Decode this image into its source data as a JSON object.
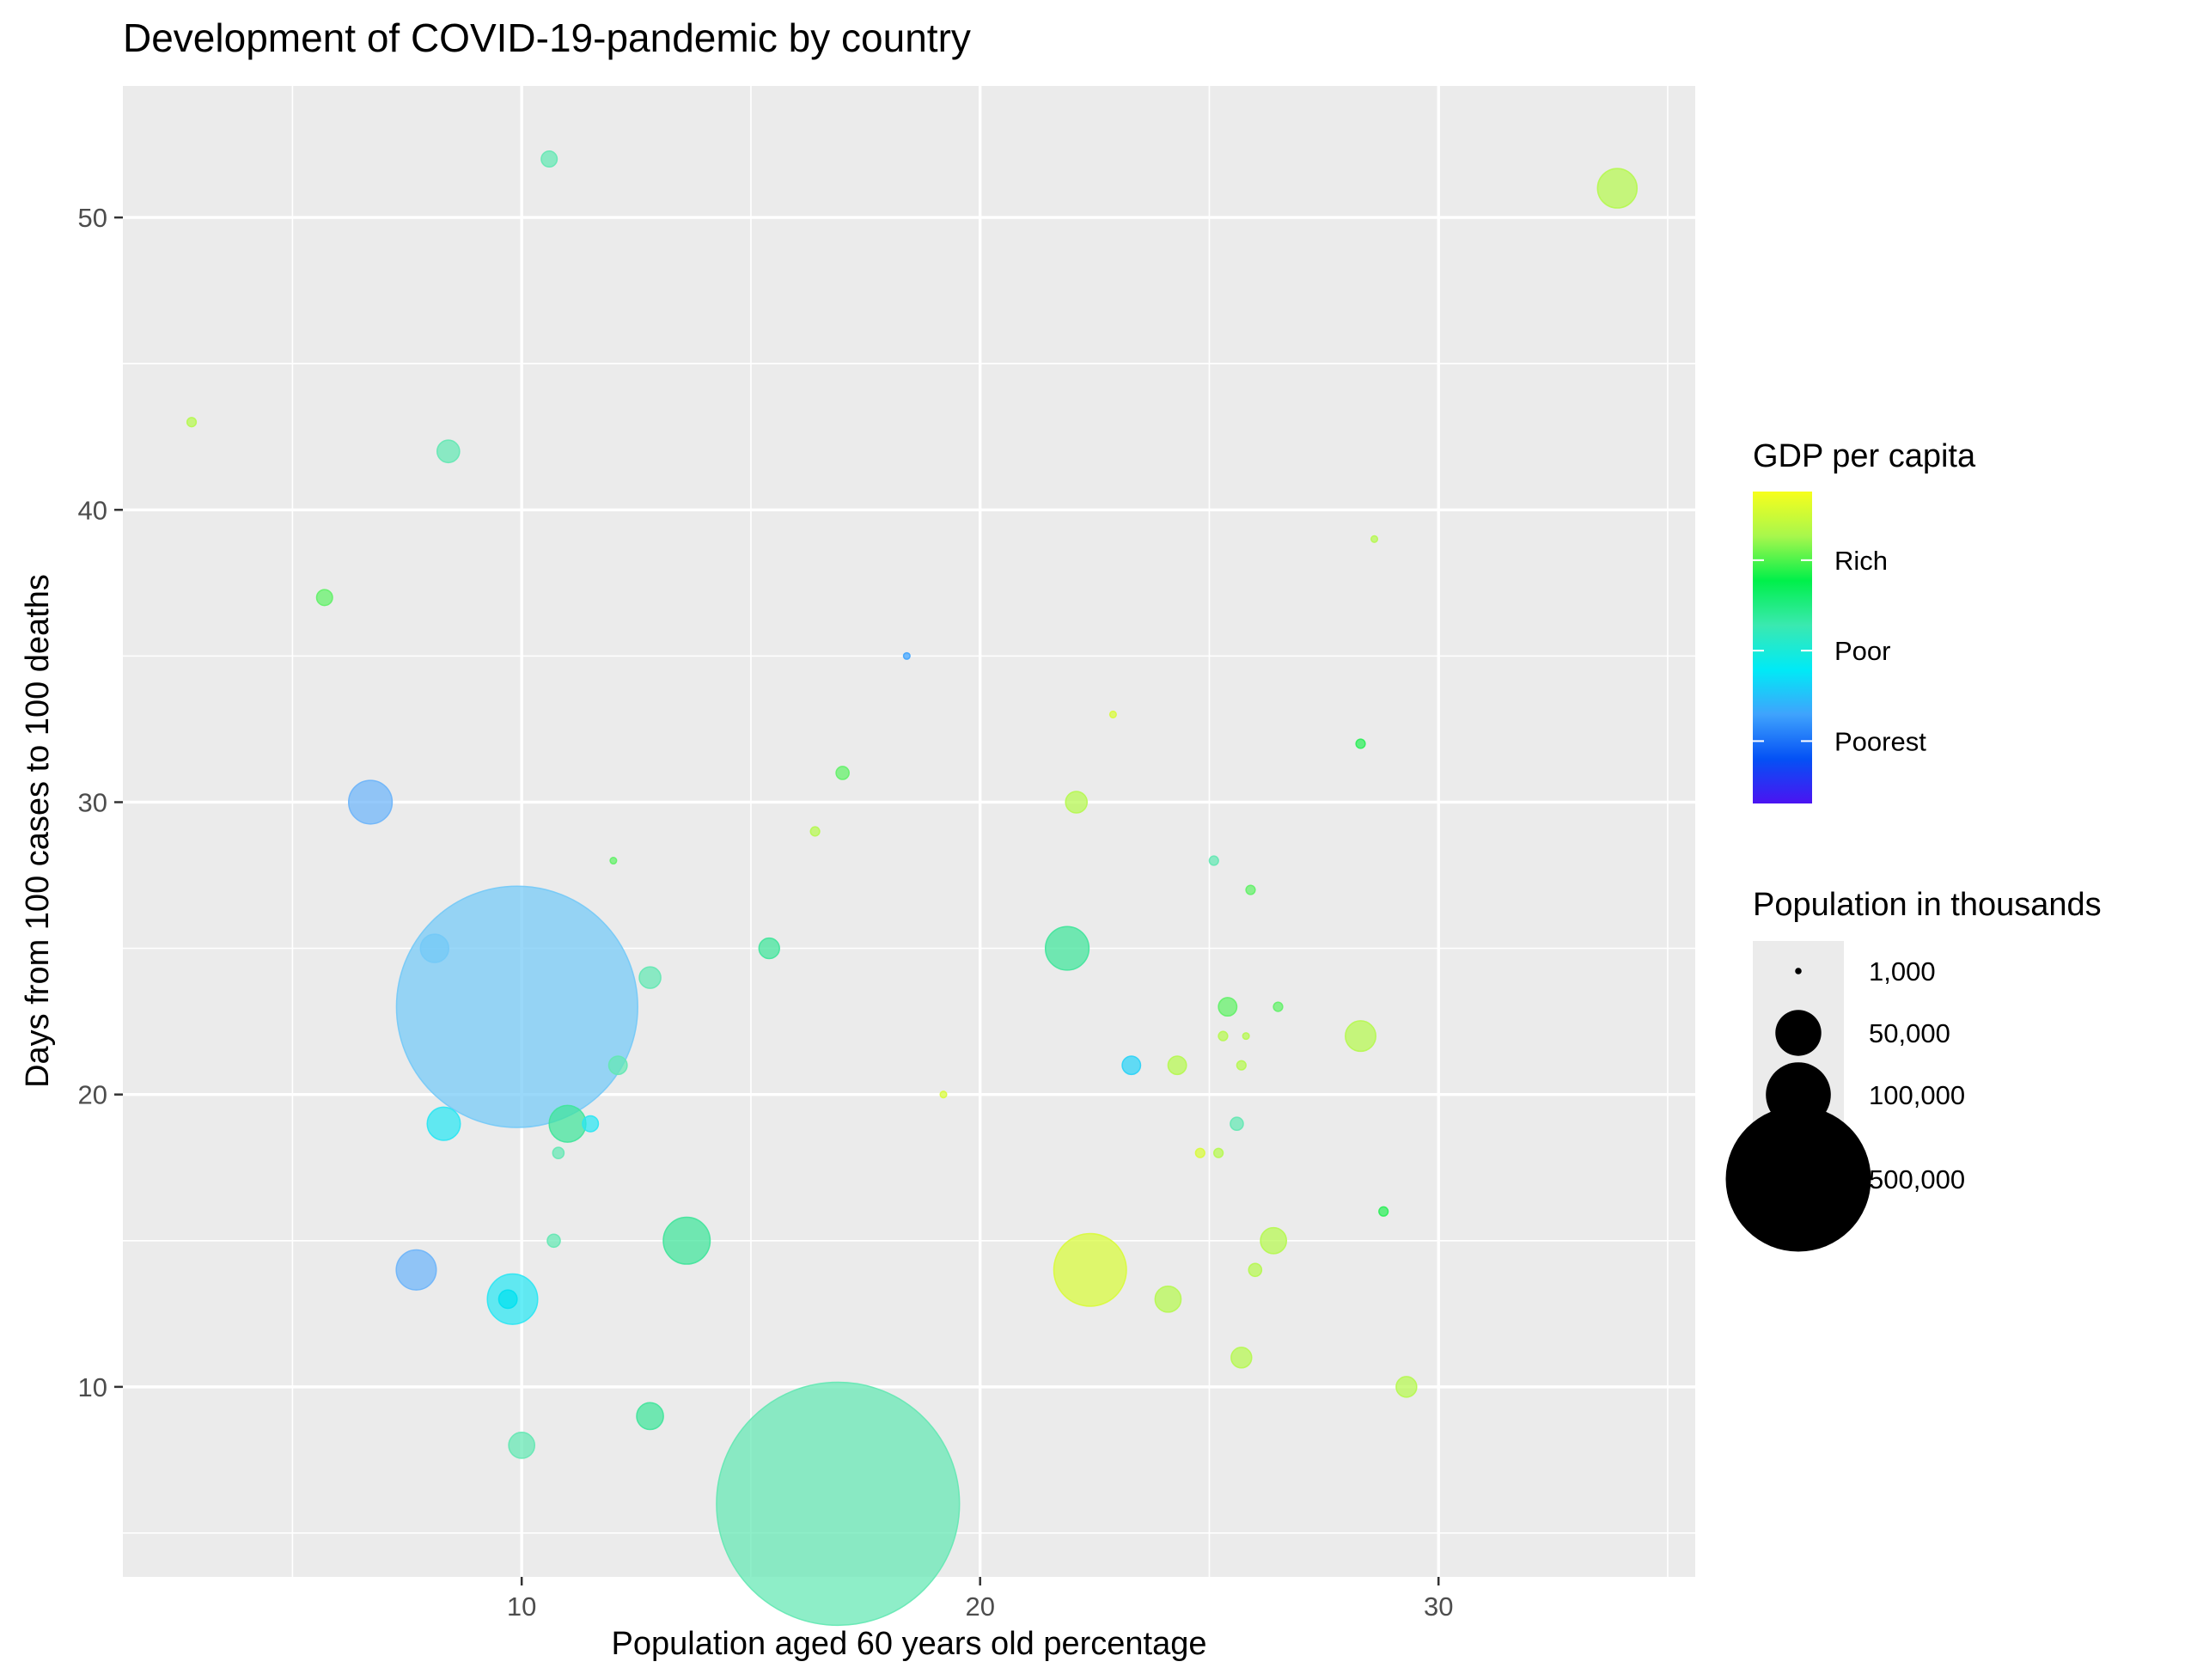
{
  "chart_data": {
    "type": "scatter",
    "title": "Development of COVID-19-pandemic by country",
    "xlabel": "Population aged 60 years old percentage",
    "ylabel": "Days from 100 cases to 100 deaths",
    "xlim": [
      1.3,
      35.6
    ],
    "ylim": [
      3.5,
      54.5
    ],
    "x_ticks": [
      10,
      20,
      30
    ],
    "y_ticks": [
      10,
      20,
      30,
      40,
      50
    ],
    "grid": true,
    "color_legend": {
      "title": "GDP per capita",
      "labels": [
        "Rich",
        "Poor",
        "Poorest"
      ],
      "label_values": [
        0.78,
        0.49,
        0.2
      ],
      "gradient": [
        "#4b13f2",
        "#0451f5",
        "#3fa3fd",
        "#00eaf6",
        "#3ae9b0",
        "#00f04a",
        "#a8f74c",
        "#f7fe1c"
      ]
    },
    "size_legend": {
      "title": "Population in thousands",
      "labels": [
        "1,000",
        "50,000",
        "100,000",
        "500,000"
      ],
      "values": [
        1000,
        50000,
        100000,
        500000
      ]
    },
    "points": [
      {
        "x": 2.8,
        "y": 43,
        "size": 2000,
        "color": "#b5f84f"
      },
      {
        "x": 5.7,
        "y": 37,
        "size": 6000,
        "color": "#61f167"
      },
      {
        "x": 6.7,
        "y": 30,
        "size": 45000,
        "color": "#6cb4f9"
      },
      {
        "x": 8.1,
        "y": 25,
        "size": 19000,
        "color": "#73c9f7"
      },
      {
        "x": 8.3,
        "y": 19,
        "size": 26000,
        "color": "#29e6f3"
      },
      {
        "x": 7.7,
        "y": 14,
        "size": 38000,
        "color": "#6cb4f9"
      },
      {
        "x": 8.4,
        "y": 42,
        "size": 12000,
        "color": "#63e8b3"
      },
      {
        "x": 9.8,
        "y": 13,
        "size": 60000,
        "color": "#29e6f3"
      },
      {
        "x": 9.7,
        "y": 13,
        "size": 8000,
        "color": "#00e0f0"
      },
      {
        "x": 9.9,
        "y": 23,
        "size": 1380000,
        "color": "#73c9f7"
      },
      {
        "x": 10.0,
        "y": 8,
        "size": 16000,
        "color": "#63e8b3"
      },
      {
        "x": 10.6,
        "y": 52,
        "size": 6000,
        "color": "#63e8b3"
      },
      {
        "x": 10.8,
        "y": 18,
        "size": 3000,
        "color": "#63e8b3"
      },
      {
        "x": 10.7,
        "y": 15,
        "size": 4000,
        "color": "#63e8b3"
      },
      {
        "x": 11.0,
        "y": 19,
        "size": 32000,
        "color": "#3fe49a"
      },
      {
        "x": 11.5,
        "y": 19,
        "size": 6000,
        "color": "#29e6f3"
      },
      {
        "x": 12.0,
        "y": 28,
        "size": 1000,
        "color": "#61f167"
      },
      {
        "x": 12.1,
        "y": 21,
        "size": 8000,
        "color": "#63e8b3"
      },
      {
        "x": 12.8,
        "y": 24,
        "size": 11000,
        "color": "#63e8b3"
      },
      {
        "x": 12.8,
        "y": 9,
        "size": 17000,
        "color": "#3fe49a"
      },
      {
        "x": 13.6,
        "y": 15,
        "size": 52000,
        "color": "#3fe49a"
      },
      {
        "x": 15.4,
        "y": 25,
        "size": 10000,
        "color": "#3fe49a"
      },
      {
        "x": 16.4,
        "y": 29,
        "size": 2000,
        "color": "#b5f84f"
      },
      {
        "x": 16.9,
        "y": 6,
        "size": 1400000,
        "color": "#63e8b3"
      },
      {
        "x": 17.0,
        "y": 31,
        "size": 4000,
        "color": "#61f167"
      },
      {
        "x": 18.4,
        "y": 35,
        "size": 1000,
        "color": "#3fa3fd"
      },
      {
        "x": 19.2,
        "y": 20,
        "size": 1000,
        "color": "#d8fb3a"
      },
      {
        "x": 21.9,
        "y": 25,
        "size": 45000,
        "color": "#3fe49a"
      },
      {
        "x": 22.1,
        "y": 30,
        "size": 11000,
        "color": "#b5f84f"
      },
      {
        "x": 22.4,
        "y": 14,
        "size": 125000,
        "color": "#d8fb3a"
      },
      {
        "x": 22.9,
        "y": 33,
        "size": 1000,
        "color": "#d8fb3a"
      },
      {
        "x": 23.3,
        "y": 21,
        "size": 8000,
        "color": "#29d2f6"
      },
      {
        "x": 24.1,
        "y": 13,
        "size": 16000,
        "color": "#b5f84f"
      },
      {
        "x": 24.3,
        "y": 21,
        "size": 8000,
        "color": "#b5f84f"
      },
      {
        "x": 24.8,
        "y": 18,
        "size": 2000,
        "color": "#d8fb3a"
      },
      {
        "x": 25.1,
        "y": 28,
        "size": 2000,
        "color": "#63e8b3"
      },
      {
        "x": 25.2,
        "y": 18,
        "size": 2000,
        "color": "#b5f84f"
      },
      {
        "x": 25.3,
        "y": 22,
        "size": 2000,
        "color": "#b5f84f"
      },
      {
        "x": 25.4,
        "y": 23,
        "size": 8000,
        "color": "#61f167"
      },
      {
        "x": 25.6,
        "y": 19,
        "size": 4000,
        "color": "#63e8b3"
      },
      {
        "x": 25.7,
        "y": 21,
        "size": 2000,
        "color": "#b5f84f"
      },
      {
        "x": 25.7,
        "y": 11,
        "size": 10000,
        "color": "#b5f84f"
      },
      {
        "x": 25.8,
        "y": 22,
        "size": 1000,
        "color": "#b5f84f"
      },
      {
        "x": 25.9,
        "y": 27,
        "size": 2000,
        "color": "#61f167"
      },
      {
        "x": 26.0,
        "y": 14,
        "size": 4000,
        "color": "#b5f84f"
      },
      {
        "x": 26.4,
        "y": 15,
        "size": 16000,
        "color": "#b5f84f"
      },
      {
        "x": 26.5,
        "y": 23,
        "size": 2000,
        "color": "#61f167"
      },
      {
        "x": 28.3,
        "y": 22,
        "size": 22000,
        "color": "#b5f84f"
      },
      {
        "x": 28.3,
        "y": 32,
        "size": 2000,
        "color": "#2aee57"
      },
      {
        "x": 28.6,
        "y": 39,
        "size": 1000,
        "color": "#b5f84f"
      },
      {
        "x": 28.8,
        "y": 16,
        "size": 2000,
        "color": "#2aee57"
      },
      {
        "x": 29.3,
        "y": 10,
        "size": 10000,
        "color": "#b5f84f"
      },
      {
        "x": 33.9,
        "y": 51,
        "size": 37000,
        "color": "#b5f84f"
      }
    ]
  }
}
